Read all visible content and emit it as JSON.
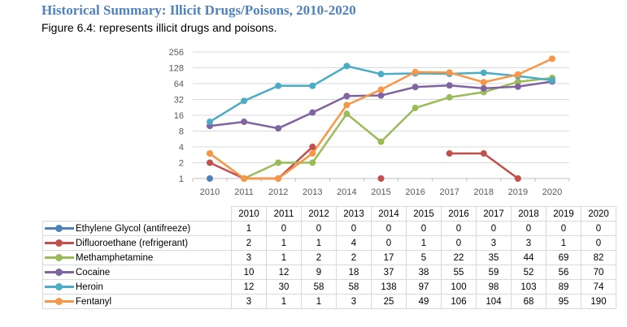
{
  "header": {
    "title": "Historical Summary: Illicit Drugs/Poisons, 2010-2020",
    "subtitle": "Figure 6.4: represents illicit drugs and poisons."
  },
  "chart_data": {
    "type": "line",
    "title": "Historical Summary: Illicit Drugs/Poisons, 2010-2020",
    "xlabel": "",
    "ylabel": "",
    "yscale": "log2",
    "ylim": [
      1,
      256
    ],
    "yticks": [
      "1",
      "2",
      "4",
      "8",
      "16",
      "32",
      "64",
      "128",
      "256"
    ],
    "ytick_values": [
      1,
      2,
      4,
      8,
      16,
      32,
      64,
      128,
      256
    ],
    "categories": [
      "2010",
      "2011",
      "2012",
      "2013",
      "2014",
      "2015",
      "2016",
      "2017",
      "2018",
      "2019",
      "2020"
    ],
    "grid": true,
    "legend": "data-table-below",
    "series": [
      {
        "name": "Ethylene Glycol (antifreeze)",
        "color": "#4f81bd",
        "values": [
          1,
          0,
          0,
          0,
          0,
          0,
          0,
          0,
          0,
          0,
          0
        ]
      },
      {
        "name": "Difluoroethane (refrigerant)",
        "color": "#c0504d",
        "values": [
          2,
          1,
          1,
          4,
          0,
          1,
          0,
          3,
          3,
          1,
          0
        ]
      },
      {
        "name": "Methamphetamine",
        "color": "#9bbb59",
        "values": [
          3,
          1,
          2,
          2,
          17,
          5,
          22,
          35,
          44,
          69,
          82
        ]
      },
      {
        "name": "Cocaine",
        "color": "#8064a2",
        "values": [
          10,
          12,
          9,
          18,
          37,
          38,
          55,
          59,
          52,
          56,
          70
        ]
      },
      {
        "name": "Heroin",
        "color": "#4bacc6",
        "values": [
          12,
          30,
          58,
          58,
          138,
          97,
          100,
          98,
          103,
          89,
          74
        ]
      },
      {
        "name": "Fentanyl",
        "color": "#f79646",
        "values": [
          3,
          1,
          1,
          3,
          25,
          49,
          106,
          104,
          68,
          95,
          190
        ]
      }
    ]
  }
}
